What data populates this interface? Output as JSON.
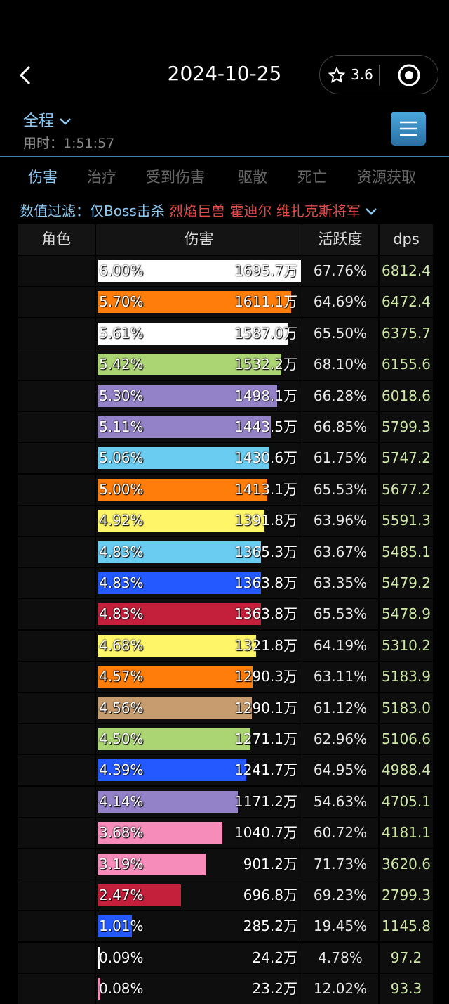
{
  "header": {
    "title": "2024-10-25",
    "rating": "3.6",
    "range": "全程",
    "duration_label": "用时：",
    "duration": "1:51:57"
  },
  "tabs": [
    "伤害",
    "治疗",
    "受到伤害",
    "驱散",
    "死亡",
    "资源获取"
  ],
  "filter": {
    "label": "数值过滤：",
    "option": "仅Boss击杀",
    "bosses": "烈焰巨兽 霍迪尔 维扎克斯将军"
  },
  "table": {
    "columns": [
      "角色",
      "伤害",
      "活跃度",
      "dps"
    ],
    "rows": [
      {
        "share": 6.0,
        "share_label": "6.00%",
        "damage": "1695.7万",
        "activity": "67.76%",
        "dps": "6812.4",
        "color": "#ffffff"
      },
      {
        "share": 5.7,
        "share_label": "5.70%",
        "damage": "1611.1万",
        "activity": "64.69%",
        "dps": "6472.4",
        "color": "#ff7d0a"
      },
      {
        "share": 5.61,
        "share_label": "5.61%",
        "damage": "1587.0万",
        "activity": "65.50%",
        "dps": "6375.7",
        "color": "#ffffff"
      },
      {
        "share": 5.42,
        "share_label": "5.42%",
        "damage": "1532.2万",
        "activity": "68.10%",
        "dps": "6155.6",
        "color": "#abd473"
      },
      {
        "share": 5.3,
        "share_label": "5.30%",
        "damage": "1498.1万",
        "activity": "66.28%",
        "dps": "6018.6",
        "color": "#9482c9"
      },
      {
        "share": 5.11,
        "share_label": "5.11%",
        "damage": "1443.5万",
        "activity": "66.85%",
        "dps": "5799.3",
        "color": "#9482c9"
      },
      {
        "share": 5.06,
        "share_label": "5.06%",
        "damage": "1430.6万",
        "activity": "61.75%",
        "dps": "5747.2",
        "color": "#69ccf0"
      },
      {
        "share": 5.0,
        "share_label": "5.00%",
        "damage": "1413.1万",
        "activity": "65.53%",
        "dps": "5677.2",
        "color": "#ff7d0a"
      },
      {
        "share": 4.92,
        "share_label": "4.92%",
        "damage": "1391.8万",
        "activity": "63.96%",
        "dps": "5591.3",
        "color": "#fff569"
      },
      {
        "share": 4.83,
        "share_label": "4.83%",
        "damage": "1365.3万",
        "activity": "63.67%",
        "dps": "5485.1",
        "color": "#69ccf0"
      },
      {
        "share": 4.83,
        "share_label": "4.83%",
        "damage": "1363.8万",
        "activity": "63.35%",
        "dps": "5479.2",
        "color": "#2459ff"
      },
      {
        "share": 4.83,
        "share_label": "4.83%",
        "damage": "1363.8万",
        "activity": "65.53%",
        "dps": "5478.9",
        "color": "#c41f3b"
      },
      {
        "share": 4.68,
        "share_label": "4.68%",
        "damage": "1321.8万",
        "activity": "64.19%",
        "dps": "5310.2",
        "color": "#fff569"
      },
      {
        "share": 4.57,
        "share_label": "4.57%",
        "damage": "1290.3万",
        "activity": "63.11%",
        "dps": "5183.9",
        "color": "#ff7d0a"
      },
      {
        "share": 4.56,
        "share_label": "4.56%",
        "damage": "1290.1万",
        "activity": "61.12%",
        "dps": "5183.0",
        "color": "#c79c6e"
      },
      {
        "share": 4.5,
        "share_label": "4.50%",
        "damage": "1271.1万",
        "activity": "62.96%",
        "dps": "5106.6",
        "color": "#abd473"
      },
      {
        "share": 4.39,
        "share_label": "4.39%",
        "damage": "1241.7万",
        "activity": "64.95%",
        "dps": "4988.4",
        "color": "#2459ff"
      },
      {
        "share": 4.14,
        "share_label": "4.14%",
        "damage": "1171.2万",
        "activity": "54.63%",
        "dps": "4705.1",
        "color": "#9482c9"
      },
      {
        "share": 3.68,
        "share_label": "3.68%",
        "damage": "1040.7万",
        "activity": "60.72%",
        "dps": "4181.1",
        "color": "#f58cba"
      },
      {
        "share": 3.19,
        "share_label": "3.19%",
        "damage": "901.2万",
        "activity": "71.73%",
        "dps": "3620.6",
        "color": "#f58cba"
      },
      {
        "share": 2.47,
        "share_label": "2.47%",
        "damage": "696.8万",
        "activity": "69.23%",
        "dps": "2799.3",
        "color": "#c41f3b"
      },
      {
        "share": 1.01,
        "share_label": "1.01%",
        "damage": "285.2万",
        "activity": "19.45%",
        "dps": "1145.8",
        "color": "#2459ff"
      },
      {
        "share": 0.09,
        "share_label": "0.09%",
        "damage": "24.2万",
        "activity": "4.78%",
        "dps": "97.2",
        "color": "#ffffff"
      },
      {
        "share": 0.08,
        "share_label": "0.08%",
        "damage": "23.2万",
        "activity": "12.02%",
        "dps": "93.3",
        "color": "#f58cba"
      }
    ]
  }
}
